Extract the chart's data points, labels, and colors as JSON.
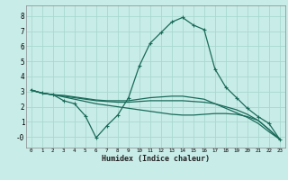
{
  "xlabel": "Humidex (Indice chaleur)",
  "bg_color": "#c8ece8",
  "grid_color": "#a8d8d0",
  "line_color": "#1a6b5a",
  "x_values": [
    0,
    1,
    2,
    3,
    4,
    5,
    6,
    7,
    8,
    9,
    10,
    11,
    12,
    13,
    14,
    15,
    16,
    17,
    18,
    19,
    20,
    21,
    22,
    23
  ],
  "series_main": [
    3.1,
    2.9,
    2.8,
    2.4,
    2.2,
    1.4,
    -0.05,
    0.75,
    1.45,
    2.6,
    4.7,
    6.2,
    6.9,
    7.6,
    7.9,
    7.4,
    7.1,
    4.5,
    3.3,
    2.6,
    1.9,
    1.35,
    0.9,
    -0.15
  ],
  "series_flat1": [
    3.1,
    2.9,
    2.8,
    2.75,
    2.65,
    2.55,
    2.45,
    2.4,
    2.4,
    2.4,
    2.5,
    2.6,
    2.65,
    2.7,
    2.7,
    2.6,
    2.5,
    2.2,
    1.9,
    1.6,
    1.3,
    0.9,
    0.35,
    -0.15
  ],
  "series_flat2": [
    3.1,
    2.9,
    2.8,
    2.7,
    2.6,
    2.5,
    2.4,
    2.35,
    2.3,
    2.3,
    2.35,
    2.4,
    2.4,
    2.4,
    2.4,
    2.35,
    2.3,
    2.2,
    2.0,
    1.8,
    1.5,
    1.1,
    0.5,
    -0.15
  ],
  "series_flat3": [
    3.1,
    2.9,
    2.8,
    2.65,
    2.5,
    2.35,
    2.2,
    2.1,
    2.0,
    1.9,
    1.8,
    1.7,
    1.6,
    1.5,
    1.45,
    1.45,
    1.5,
    1.55,
    1.55,
    1.5,
    1.35,
    1.1,
    0.5,
    -0.15
  ],
  "ylim": [
    -0.7,
    8.7
  ],
  "xlim": [
    -0.5,
    23.5
  ],
  "yticks": [
    0,
    1,
    2,
    3,
    4,
    5,
    6,
    7,
    8
  ],
  "xticks": [
    0,
    1,
    2,
    3,
    4,
    5,
    6,
    7,
    8,
    9,
    10,
    11,
    12,
    13,
    14,
    15,
    16,
    17,
    18,
    19,
    20,
    21,
    22,
    23
  ]
}
